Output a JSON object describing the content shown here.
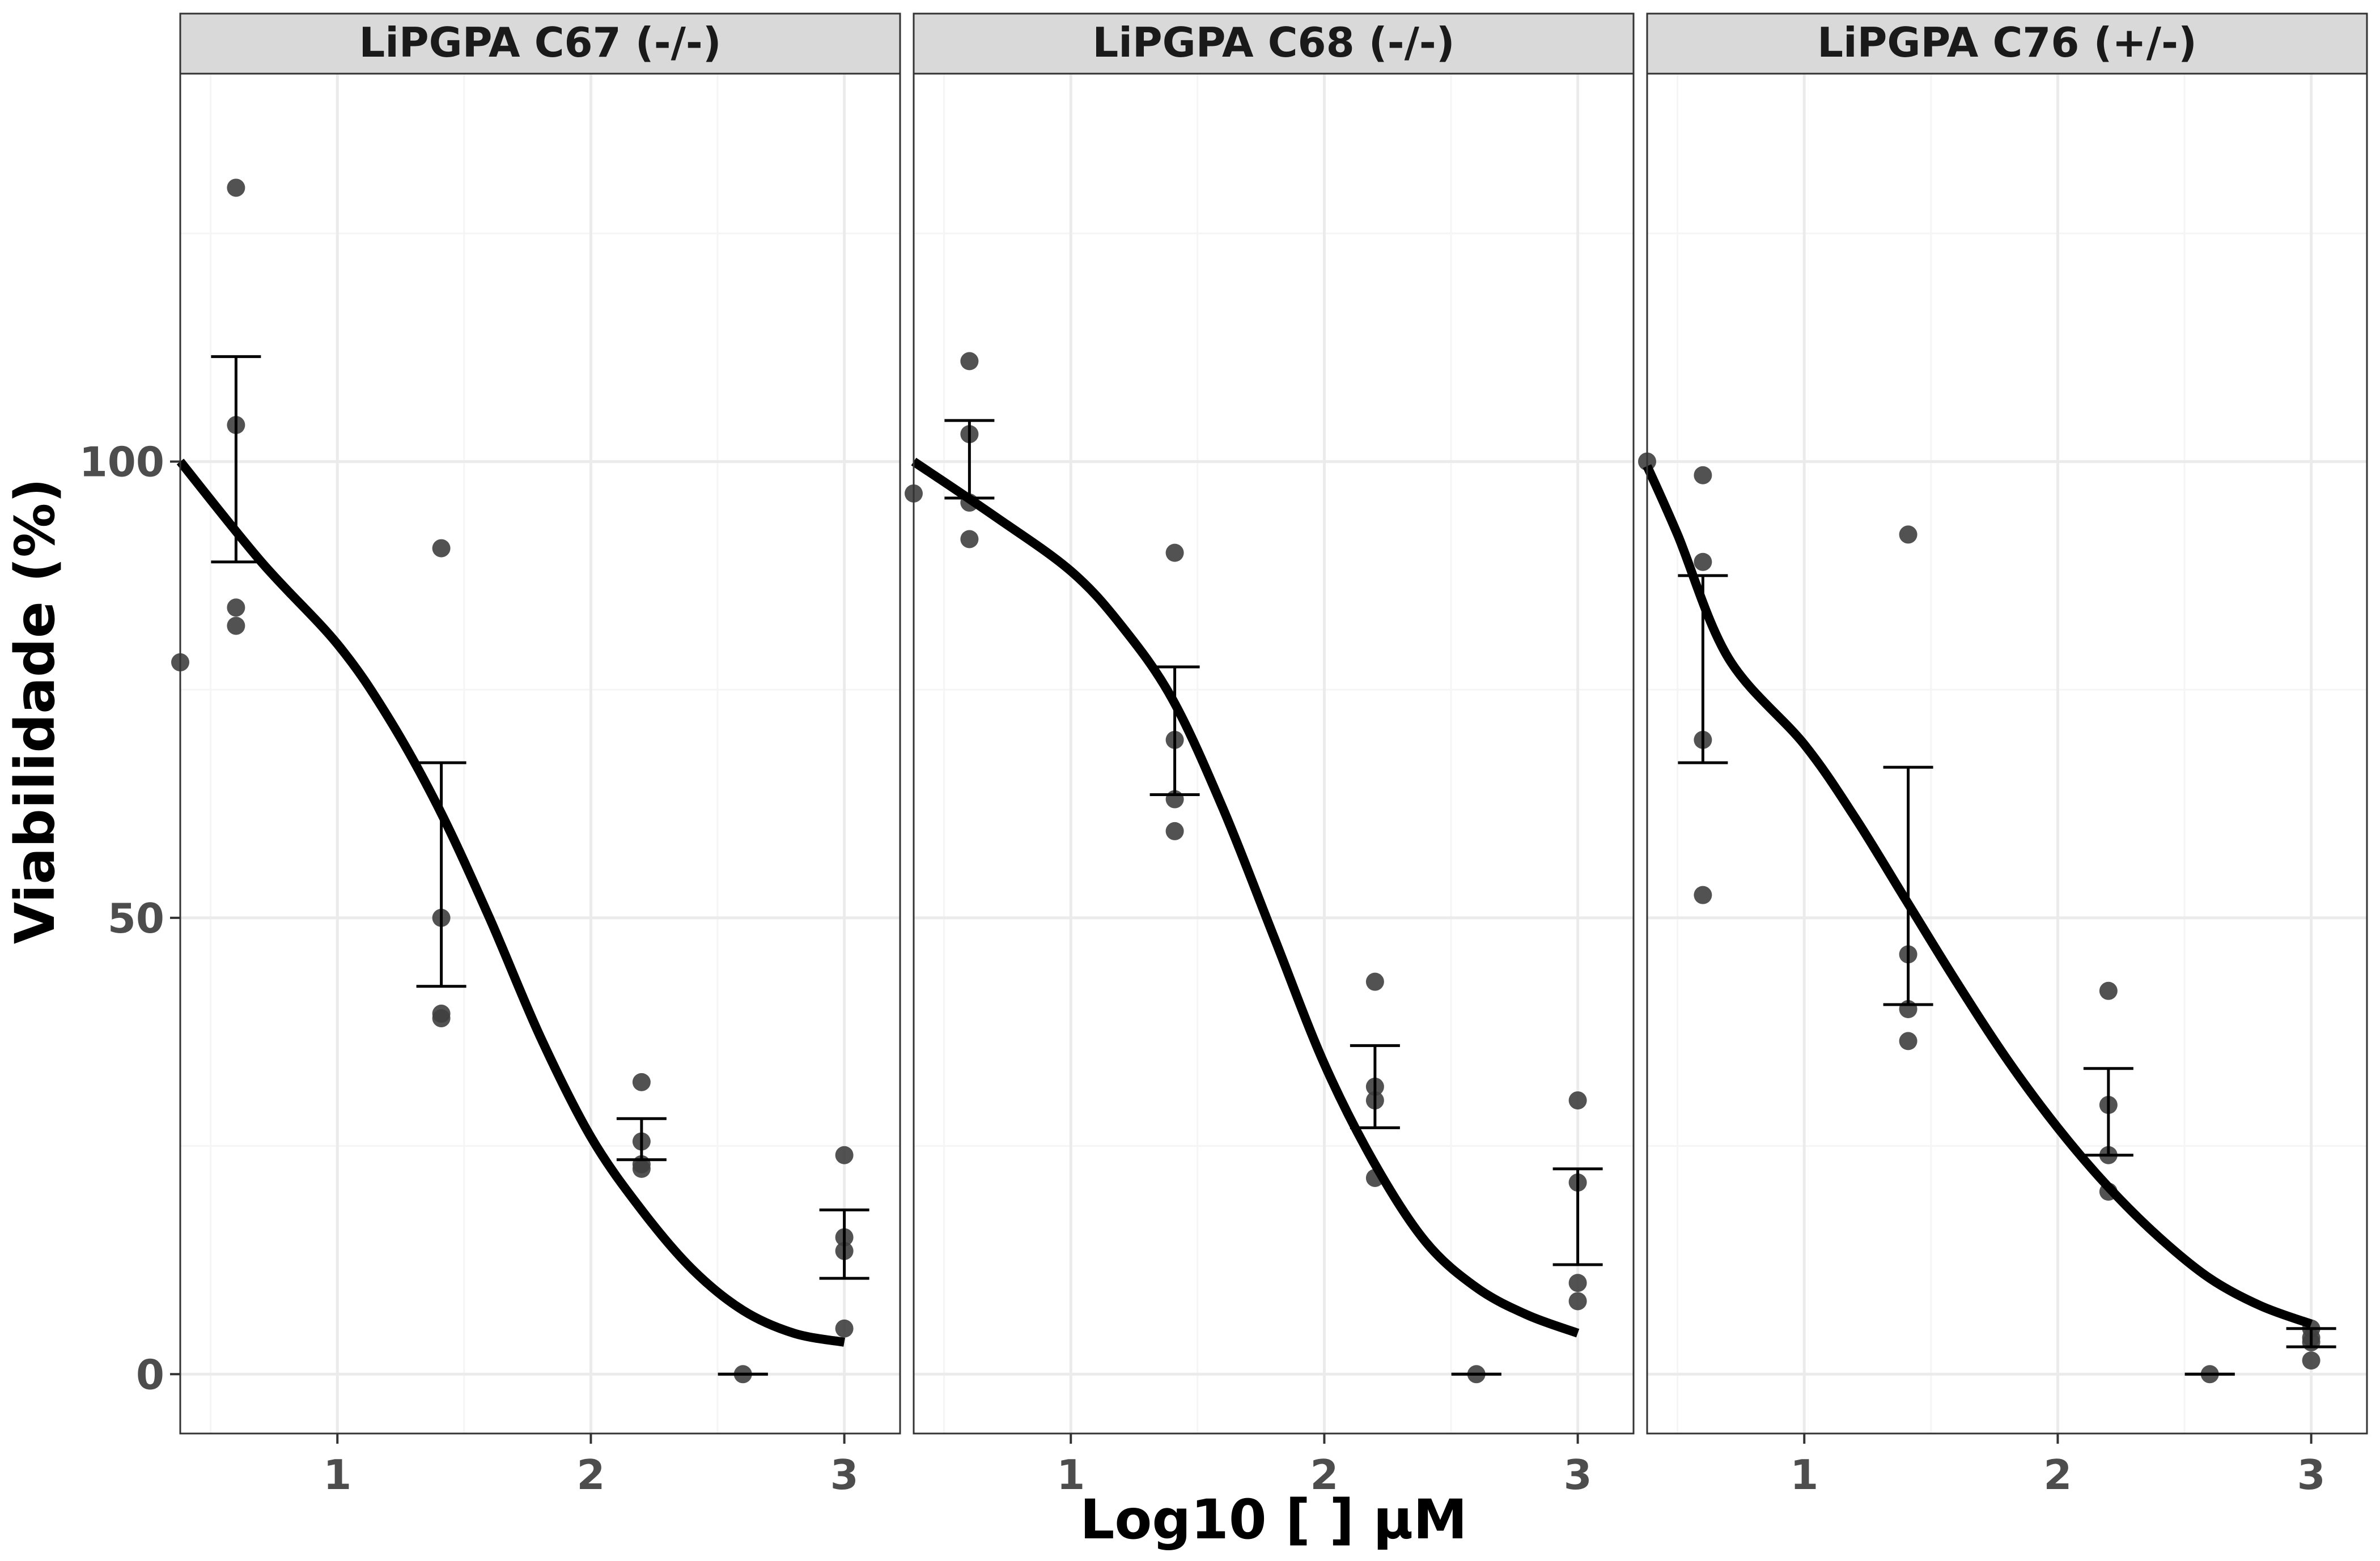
{
  "chart_data": {
    "type": "scatter",
    "xlabel": "Log10 [ ] µM",
    "ylabel": "Viabilidade (%)",
    "xlim": [
      0.38,
      3.22
    ],
    "ylim": [
      -6.5,
      142.5
    ],
    "x_ticks": [
      1,
      2,
      3
    ],
    "y_ticks": [
      0,
      50,
      100
    ],
    "grid": true,
    "colors": {
      "points": "#3f3f3f",
      "fit_line": "#000000",
      "error_bars": "#000000",
      "strip_fill": "#d9d9d9",
      "grid_major": "#ebebeb",
      "grid_minor": "#f5f5f5"
    },
    "panels": [
      {
        "strip": "LiPGPA C67 (-/-)",
        "points": [
          {
            "x": 0.38,
            "y": 78
          },
          {
            "x": 0.6,
            "y": 130
          },
          {
            "x": 0.6,
            "y": 104
          },
          {
            "x": 0.6,
            "y": 84
          },
          {
            "x": 0.6,
            "y": 82
          },
          {
            "x": 1.41,
            "y": 90.5
          },
          {
            "x": 1.41,
            "y": 50
          },
          {
            "x": 1.41,
            "y": 39.5
          },
          {
            "x": 1.41,
            "y": 39
          },
          {
            "x": 2.2,
            "y": 32
          },
          {
            "x": 2.2,
            "y": 25.5
          },
          {
            "x": 2.2,
            "y": 23
          },
          {
            "x": 2.2,
            "y": 22.5
          },
          {
            "x": 2.6,
            "y": 0
          },
          {
            "x": 3.0,
            "y": 24
          },
          {
            "x": 3.0,
            "y": 15
          },
          {
            "x": 3.0,
            "y": 13.5
          },
          {
            "x": 3.0,
            "y": 5
          }
        ],
        "error_bars": [
          {
            "x": 0.6,
            "low": 89,
            "high": 111.5
          },
          {
            "x": 1.41,
            "low": 42.5,
            "high": 67
          },
          {
            "x": 2.2,
            "low": 23.5,
            "high": 28
          },
          {
            "x": 2.6,
            "low": 0,
            "high": 0
          },
          {
            "x": 3.0,
            "low": 10.5,
            "high": 18
          }
        ],
        "fit": [
          [
            0.38,
            100
          ],
          [
            0.7,
            89
          ],
          [
            1.0,
            80
          ],
          [
            1.2,
            72
          ],
          [
            1.4,
            62
          ],
          [
            1.6,
            50
          ],
          [
            1.8,
            37
          ],
          [
            2.0,
            26
          ],
          [
            2.2,
            18
          ],
          [
            2.4,
            11.5
          ],
          [
            2.6,
            7
          ],
          [
            2.8,
            4.5
          ],
          [
            3.0,
            3.5
          ]
        ]
      },
      {
        "strip": "LiPGPA C68 (-/-)",
        "points": [
          {
            "x": 0.38,
            "y": 96.5
          },
          {
            "x": 0.6,
            "y": 111
          },
          {
            "x": 0.6,
            "y": 103
          },
          {
            "x": 0.6,
            "y": 95.5
          },
          {
            "x": 0.6,
            "y": 91.5
          },
          {
            "x": 1.41,
            "y": 90
          },
          {
            "x": 1.41,
            "y": 69.5
          },
          {
            "x": 1.41,
            "y": 63
          },
          {
            "x": 1.41,
            "y": 59.5
          },
          {
            "x": 2.2,
            "y": 43
          },
          {
            "x": 2.2,
            "y": 31.5
          },
          {
            "x": 2.2,
            "y": 30
          },
          {
            "x": 2.2,
            "y": 21.5
          },
          {
            "x": 2.6,
            "y": 0
          },
          {
            "x": 3.0,
            "y": 30
          },
          {
            "x": 3.0,
            "y": 21
          },
          {
            "x": 3.0,
            "y": 10
          },
          {
            "x": 3.0,
            "y": 8
          }
        ],
        "error_bars": [
          {
            "x": 0.6,
            "low": 96,
            "high": 104.5
          },
          {
            "x": 1.41,
            "low": 63.5,
            "high": 77.5
          },
          {
            "x": 2.2,
            "low": 27,
            "high": 36
          },
          {
            "x": 2.6,
            "low": 0,
            "high": 0
          },
          {
            "x": 3.0,
            "low": 12,
            "high": 22.5
          }
        ],
        "fit": [
          [
            0.38,
            100
          ],
          [
            0.7,
            94
          ],
          [
            1.0,
            88
          ],
          [
            1.2,
            82
          ],
          [
            1.4,
            74
          ],
          [
            1.6,
            62
          ],
          [
            1.8,
            48
          ],
          [
            2.0,
            34
          ],
          [
            2.2,
            23
          ],
          [
            2.4,
            14.5
          ],
          [
            2.6,
            9.5
          ],
          [
            2.8,
            6.5
          ],
          [
            3.0,
            4.5
          ]
        ]
      },
      {
        "strip": "LiPGPA C76 (+/-)",
        "points": [
          {
            "x": 0.38,
            "y": 100
          },
          {
            "x": 0.6,
            "y": 98.5
          },
          {
            "x": 0.6,
            "y": 89
          },
          {
            "x": 0.6,
            "y": 69.5
          },
          {
            "x": 0.6,
            "y": 52.5
          },
          {
            "x": 1.41,
            "y": 92
          },
          {
            "x": 1.41,
            "y": 46
          },
          {
            "x": 1.41,
            "y": 40
          },
          {
            "x": 1.41,
            "y": 36.5
          },
          {
            "x": 2.2,
            "y": 42
          },
          {
            "x": 2.2,
            "y": 29.5
          },
          {
            "x": 2.2,
            "y": 24
          },
          {
            "x": 2.2,
            "y": 20
          },
          {
            "x": 2.6,
            "y": 0
          },
          {
            "x": 3.0,
            "y": 5
          },
          {
            "x": 3.0,
            "y": 4
          },
          {
            "x": 3.0,
            "y": 3.5
          },
          {
            "x": 3.0,
            "y": 1.5
          }
        ],
        "error_bars": [
          {
            "x": 0.6,
            "low": 67,
            "high": 87.5
          },
          {
            "x": 1.41,
            "low": 40.5,
            "high": 66.5
          },
          {
            "x": 2.2,
            "low": 24,
            "high": 33.5
          },
          {
            "x": 2.6,
            "low": 0,
            "high": 0
          },
          {
            "x": 3.0,
            "low": 3,
            "high": 5
          }
        ],
        "fit": [
          [
            0.38,
            99.5
          ],
          [
            0.5,
            92
          ],
          [
            0.7,
            78.5
          ],
          [
            1.0,
            69
          ],
          [
            1.2,
            61
          ],
          [
            1.4,
            52
          ],
          [
            1.6,
            43
          ],
          [
            1.8,
            34.5
          ],
          [
            2.0,
            27
          ],
          [
            2.2,
            20.5
          ],
          [
            2.4,
            15
          ],
          [
            2.6,
            10.5
          ],
          [
            2.8,
            7.5
          ],
          [
            3.0,
            5.5
          ]
        ]
      }
    ]
  }
}
